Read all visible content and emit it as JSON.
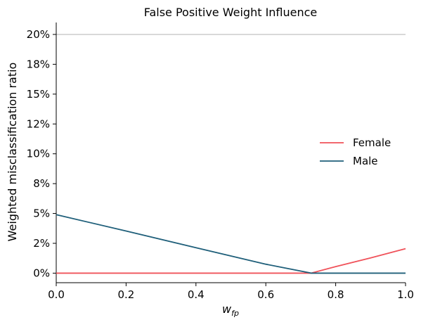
{
  "chart_data": {
    "type": "line",
    "title": "False Positive Weight Influence",
    "xlabel": "w",
    "xlabel_subscript": "fp",
    "ylabel": "Weighted misclassification ratio",
    "xlim": [
      0.0,
      1.0
    ],
    "ylim": [
      -0.008,
      0.21
    ],
    "x_ticks": [
      0.0,
      0.2,
      0.4,
      0.6,
      0.8,
      1.0
    ],
    "x_tick_labels": [
      "0.0",
      "0.2",
      "0.4",
      "0.6",
      "0.8",
      "1.0"
    ],
    "y_ticks": [
      0.0,
      0.025,
      0.05,
      0.075,
      0.1,
      0.125,
      0.15,
      0.175,
      0.2
    ],
    "y_tick_labels": [
      "0%",
      "2%",
      "5%",
      "8%",
      "10%",
      "12%",
      "15%",
      "18%",
      "20%"
    ],
    "reference_line_y": 0.2,
    "grid": false,
    "legend_position": "right",
    "series": [
      {
        "name": "Female",
        "color": "#f0525a",
        "x": [
          0.0,
          0.2,
          0.4,
          0.6,
          0.73,
          0.8,
          0.9,
          1.0
        ],
        "y": [
          0.0,
          0.0,
          0.0,
          0.0,
          0.0,
          0.0055,
          0.0128,
          0.0205
        ]
      },
      {
        "name": "Male",
        "color": "#1f5f7a",
        "x": [
          0.0,
          0.2,
          0.4,
          0.6,
          0.73,
          0.8,
          1.0
        ],
        "y": [
          0.049,
          0.0353,
          0.0213,
          0.0075,
          0.0,
          0.0,
          0.0
        ]
      }
    ]
  }
}
